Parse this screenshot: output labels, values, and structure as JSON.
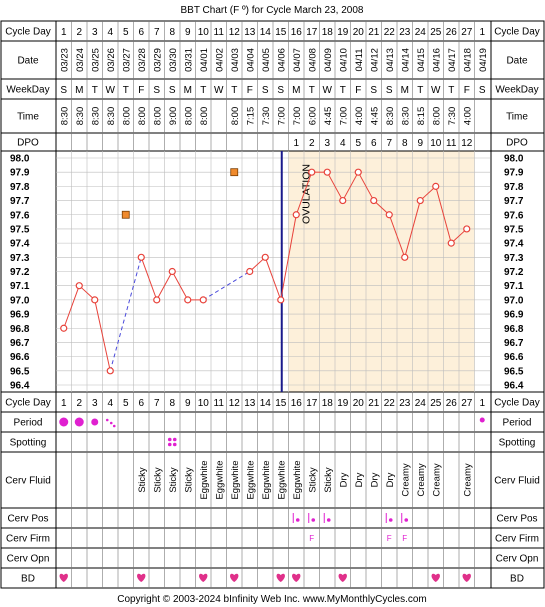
{
  "title": "BBT Chart (F º) for Cycle March 23, 2008",
  "copyright": "Copyright © 2003-2024 bInfinity Web Inc.    www.MyMonthlyCycles.com",
  "row_labels": {
    "cycle_day": "Cycle Day",
    "date": "Date",
    "weekday": "WeekDay",
    "time": "Time",
    "dpo": "DPO",
    "period": "Period",
    "spotting": "Spotting",
    "cerv_fluid": "Cerv Fluid",
    "cerv_pos": "Cerv Pos",
    "cerv_firm": "Cerv Firm",
    "cerv_opn": "Cerv Opn",
    "bd": "BD"
  },
  "ovulation_label": "OVULATION",
  "colors": {
    "line": "#e8423a",
    "luteal_bg": "#fdf0da",
    "grid": "#bdbdbd",
    "ovulation": "#1a1a8c",
    "period": "#e020d0",
    "bd": "#e0308a",
    "spotting": "#e020d0",
    "marker_fill": "#f08a2c"
  },
  "chart_data": {
    "type": "line",
    "title": "BBT Chart (F º) for Cycle March 23, 2008",
    "ylim": [
      96.4,
      98.0
    ],
    "yticks": [
      "98.0",
      "97.9",
      "97.8",
      "97.7",
      "97.6",
      "97.5",
      "97.4",
      "97.3",
      "97.2",
      "97.1",
      "97.0",
      "96.9",
      "96.8",
      "96.7",
      "96.6",
      "96.5",
      "96.4"
    ],
    "cycle_days": [
      "1",
      "2",
      "3",
      "4",
      "5",
      "6",
      "7",
      "8",
      "9",
      "10",
      "11",
      "12",
      "13",
      "14",
      "15",
      "16",
      "17",
      "18",
      "19",
      "20",
      "21",
      "22",
      "23",
      "24",
      "25",
      "26",
      "27",
      "1"
    ],
    "dates": [
      "03/23",
      "03/24",
      "03/25",
      "03/26",
      "03/27",
      "03/28",
      "03/29",
      "03/30",
      "03/31",
      "04/01",
      "04/02",
      "04/03",
      "04/04",
      "04/05",
      "04/06",
      "04/07",
      "04/08",
      "04/09",
      "04/10",
      "04/11",
      "04/12",
      "04/13",
      "04/14",
      "04/15",
      "04/16",
      "04/17",
      "04/18",
      "04/19"
    ],
    "weekdays": [
      "S",
      "M",
      "T",
      "W",
      "T",
      "F",
      "S",
      "S",
      "M",
      "T",
      "W",
      "T",
      "F",
      "S",
      "S",
      "M",
      "T",
      "W",
      "T",
      "F",
      "S",
      "S",
      "M",
      "T",
      "W",
      "T",
      "F",
      "S"
    ],
    "times": [
      "8:30",
      "8:30",
      "8:30",
      "8:30",
      "8:00",
      "8:00",
      "8:00",
      "9:00",
      "8:00",
      "8:00",
      "",
      "8:00",
      "7:15",
      "7:30",
      "7:00",
      "7:00",
      "6:00",
      "4:45",
      "7:00",
      "4:00",
      "4:45",
      "8:30",
      "8:30",
      "8:15",
      "8:00",
      "7:30",
      "4:00",
      ""
    ],
    "dpo": [
      "",
      "",
      "",
      "",
      "",
      "",
      "",
      "",
      "",
      "",
      "",
      "",
      "",
      "",
      "",
      "1",
      "2",
      "3",
      "4",
      "5",
      "6",
      "7",
      "8",
      "9",
      "10",
      "11",
      "12",
      ""
    ],
    "temps": [
      96.8,
      97.1,
      97.0,
      96.5,
      null,
      97.3,
      97.0,
      97.2,
      97.0,
      97.0,
      null,
      null,
      97.2,
      97.3,
      97.0,
      97.6,
      97.9,
      97.9,
      97.7,
      97.9,
      97.7,
      97.6,
      97.3,
      97.7,
      97.8,
      97.4,
      97.5,
      null
    ],
    "discarded": [
      {
        "day_index": 4,
        "temp": 97.6
      },
      {
        "day_index": 11,
        "temp": 97.9
      }
    ],
    "ovulation_after_index": 14,
    "period": [
      3,
      3,
      2,
      1,
      0,
      0,
      0,
      0,
      0,
      0,
      0,
      0,
      0,
      0,
      0,
      0,
      0,
      0,
      0,
      0,
      0,
      0,
      0,
      0,
      0,
      0,
      0,
      1
    ],
    "spotting": [
      0,
      0,
      0,
      0,
      0,
      0,
      0,
      1,
      0,
      0,
      0,
      0,
      0,
      0,
      0,
      0,
      0,
      0,
      0,
      0,
      0,
      0,
      0,
      0,
      0,
      0,
      0,
      0
    ],
    "cerv_fluid": [
      "",
      "",
      "",
      "",
      "",
      "Sticky",
      "Sticky",
      "Sticky",
      "Sticky",
      "Eggwhite",
      "Eggwhite",
      "Eggwhite",
      "Eggwhite",
      "Eggwhite",
      "Eggwhite",
      "Eggwhite",
      "Sticky",
      "Sticky",
      "Dry",
      "Dry",
      "Dry",
      "Dry",
      "Creamy",
      "Creamy",
      "Creamy",
      "",
      "Creamy",
      ""
    ],
    "cerv_pos": [
      0,
      0,
      0,
      0,
      0,
      0,
      0,
      0,
      0,
      0,
      0,
      0,
      0,
      0,
      0,
      1,
      1,
      1,
      0,
      0,
      0,
      1,
      1,
      0,
      0,
      0,
      0,
      0
    ],
    "cerv_firm": [
      "",
      "",
      "",
      "",
      "",
      "",
      "",
      "",
      "",
      "",
      "",
      "",
      "",
      "",
      "",
      "",
      "F",
      "",
      "",
      "",
      "",
      "F",
      "F",
      "",
      "",
      "",
      "",
      ""
    ],
    "bd": [
      1,
      0,
      0,
      0,
      0,
      1,
      0,
      0,
      0,
      1,
      0,
      1,
      0,
      0,
      1,
      1,
      0,
      0,
      1,
      0,
      0,
      0,
      0,
      0,
      1,
      0,
      1,
      0
    ]
  }
}
